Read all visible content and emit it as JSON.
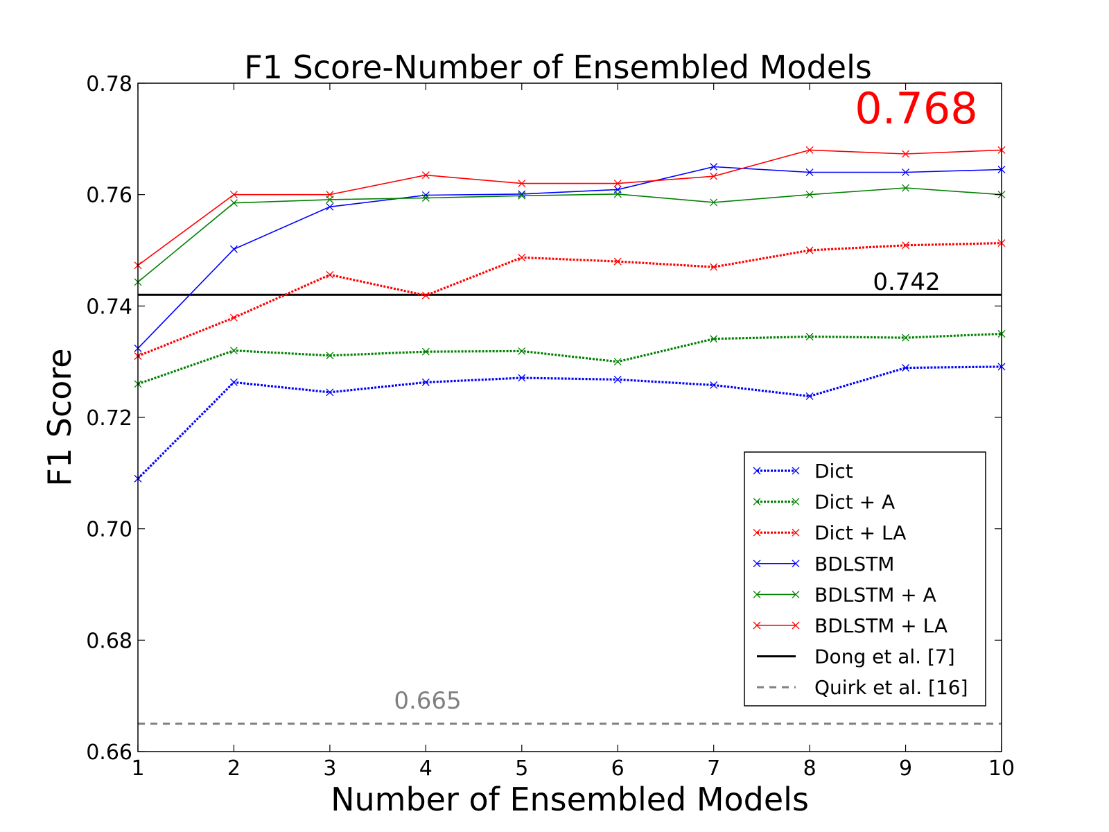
{
  "chart_data": {
    "type": "line",
    "title": "F1 Score-Number of Ensembled Models",
    "xlabel": "Number of Ensembled Models",
    "ylabel": "F1 Score",
    "xlim": [
      1,
      10
    ],
    "ylim": [
      0.66,
      0.78
    ],
    "xticks": [
      "1",
      "2",
      "3",
      "4",
      "5",
      "6",
      "7",
      "8",
      "9",
      "10"
    ],
    "yticks": [
      "0.66",
      "0.68",
      "0.70",
      "0.72",
      "0.74",
      "0.76",
      "0.78"
    ],
    "grid": false,
    "legend_position": "lower-right",
    "x": [
      1,
      2,
      3,
      4,
      5,
      6,
      7,
      8,
      9,
      10
    ],
    "series": [
      {
        "name": "Dict",
        "style": "dotted",
        "color": "#0000ff",
        "marker": "x",
        "values": [
          0.709,
          0.7263,
          0.7245,
          0.7263,
          0.7271,
          0.7268,
          0.7258,
          0.7238,
          0.7289,
          0.7291
        ]
      },
      {
        "name": "Dict + A",
        "style": "dotted",
        "color": "#008000",
        "marker": "x",
        "values": [
          0.726,
          0.732,
          0.7311,
          0.7318,
          0.7319,
          0.73,
          0.7341,
          0.7345,
          0.7343,
          0.735
        ]
      },
      {
        "name": "Dict + LA",
        "style": "dotted",
        "color": "#ff0000",
        "marker": "x",
        "values": [
          0.731,
          0.7379,
          0.7456,
          0.7419,
          0.7487,
          0.748,
          0.747,
          0.75,
          0.7509,
          0.7513
        ]
      },
      {
        "name": "BDLSTM",
        "style": "solid",
        "color": "#0000ff",
        "marker": "x",
        "values": [
          0.7324,
          0.7502,
          0.7578,
          0.7599,
          0.7601,
          0.7609,
          0.765,
          0.764,
          0.764,
          0.7645
        ]
      },
      {
        "name": "BDLSTM + A",
        "style": "solid",
        "color": "#008000",
        "marker": "x",
        "values": [
          0.7443,
          0.7585,
          0.7591,
          0.7594,
          0.7598,
          0.7601,
          0.7586,
          0.76,
          0.7612,
          0.76
        ]
      },
      {
        "name": "BDLSTM + LA",
        "style": "solid",
        "color": "#ff0000",
        "marker": "x",
        "values": [
          0.7473,
          0.76,
          0.76,
          0.7635,
          0.762,
          0.762,
          0.7633,
          0.768,
          0.7673,
          0.768
        ]
      }
    ],
    "reference_lines": [
      {
        "name": "Dong et al. [7]",
        "value": 0.742,
        "label": "0.742",
        "style": "solid",
        "color": "#000000"
      },
      {
        "name": "Quirk et al. [16]",
        "value": 0.665,
        "label": "0.665",
        "style": "dashed",
        "color": "#808080"
      }
    ],
    "annotations": [
      {
        "text": "0.768",
        "color": "#ff0000"
      }
    ]
  }
}
